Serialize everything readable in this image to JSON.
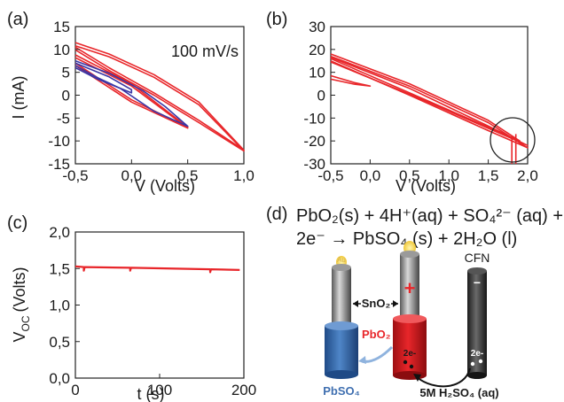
{
  "colors": {
    "red": "#e8262a",
    "blue": "#3a37a6",
    "black": "#111111",
    "gold": "#f3d35a",
    "pbso4_blue": "#3f6fb0",
    "arrow_blue": "#8fb3de"
  },
  "chart_data": [
    {
      "type": "line",
      "panel_label": "(a)",
      "annotation": "100 mV/s",
      "xlabel": "V (Volts)",
      "ylabel": "I (mA)",
      "xlim": [
        -0.5,
        1.0
      ],
      "ylim": [
        -15,
        15
      ],
      "xticks": [
        "-0,5",
        "0,0",
        "0,5",
        "1,0"
      ],
      "yticks": [
        "-15",
        "-10",
        "-5",
        "0",
        "5",
        "10",
        "15"
      ],
      "series": [
        {
          "color": "red",
          "x": [
            -0.5,
            -0.2,
            0.2,
            0.6,
            1.0,
            0.6,
            0.2,
            -0.2,
            -0.5
          ],
          "y": [
            11.5,
            9.0,
            4.5,
            -1.5,
            -12.0,
            -5.5,
            0.5,
            6.0,
            10.5
          ]
        },
        {
          "color": "red",
          "x": [
            -0.5,
            -0.2,
            0.2,
            0.6,
            1.0,
            0.6,
            0.2,
            -0.2,
            -0.5
          ],
          "y": [
            10.8,
            8.4,
            3.9,
            -2.1,
            -12.2,
            -6.0,
            0.0,
            5.4,
            9.9
          ]
        },
        {
          "color": "red",
          "x": [
            -0.5,
            0.0,
            0.5,
            0.0,
            -0.5
          ],
          "y": [
            8.8,
            2.5,
            -7.0,
            -1.0,
            7.0
          ]
        },
        {
          "color": "red",
          "x": [
            -0.5,
            0.0,
            0.5,
            0.0,
            -0.5
          ],
          "y": [
            8.2,
            2.0,
            -7.2,
            -1.5,
            6.5
          ]
        },
        {
          "color": "blue",
          "x": [
            -0.5,
            -0.2,
            0.1,
            0.3,
            0.5,
            0.2,
            -0.1,
            -0.3,
            -0.5
          ],
          "y": [
            7.5,
            4.8,
            1.0,
            -2.5,
            -6.8,
            -3.5,
            1.5,
            3.8,
            6.5
          ]
        },
        {
          "color": "blue",
          "x": [
            -0.5,
            -0.2,
            0.0,
            0.0,
            -0.3,
            -0.5
          ],
          "y": [
            7.0,
            4.0,
            1.2,
            0.5,
            3.5,
            6.0
          ]
        }
      ]
    },
    {
      "type": "line",
      "panel_label": "(b)",
      "xlabel": "V (Volts)",
      "xlim": [
        -0.5,
        2.0
      ],
      "ylim": [
        -30,
        30
      ],
      "xticks": [
        "-0,5",
        "0,0",
        "0,5",
        "1,0",
        "1,5",
        "2,0"
      ],
      "yticks": [
        "-30",
        "-20",
        "-10",
        "0",
        "10",
        "20",
        "30"
      ],
      "series": [
        {
          "color": "red",
          "x": [
            -0.5,
            0.5,
            1.5,
            1.9,
            1.5,
            0.5,
            -0.5
          ],
          "y": [
            18.0,
            5.0,
            -11.0,
            -20.0,
            -14.0,
            1.0,
            16.0
          ]
        },
        {
          "color": "red",
          "x": [
            -0.5,
            0.5,
            1.5,
            2.0,
            1.5,
            0.5,
            -0.5
          ],
          "y": [
            17.0,
            4.0,
            -12.0,
            -23.0,
            -15.5,
            0.0,
            15.0
          ]
        },
        {
          "color": "red",
          "x": [
            -0.5,
            0.5,
            1.5,
            2.0,
            1.6,
            0.6,
            -0.5
          ],
          "y": [
            16.5,
            3.0,
            -13.5,
            -22.0,
            -16.0,
            -1.0,
            14.5
          ]
        },
        {
          "color": "red",
          "x": [
            -0.5,
            -0.2,
            0.0,
            -0.2,
            -0.5
          ],
          "y": [
            8.5,
            5.5,
            4.0,
            4.8,
            7.0
          ]
        },
        {
          "color": "red",
          "x": [
            1.8,
            1.8
          ],
          "y": [
            -18.0,
            -30.0
          ]
        },
        {
          "color": "red",
          "x": [
            1.85,
            1.85
          ],
          "y": [
            -17.0,
            -30.0
          ]
        }
      ]
    },
    {
      "type": "line",
      "panel_label": "(c)",
      "xlabel": "t (s)",
      "ylabel": "V",
      "ylabel_sub": "OC",
      "ylabel_unit": "(Volts)",
      "xlim": [
        0,
        200
      ],
      "ylim": [
        0.0,
        2.0
      ],
      "xticks": [
        "0",
        "100",
        "200"
      ],
      "yticks": [
        "0,0",
        "0,5",
        "1,0",
        "1,5",
        "2,0"
      ],
      "series": [
        {
          "color": "red",
          "x": [
            0,
            10,
            10,
            11,
            65,
            65,
            66,
            160,
            160,
            161,
            195
          ],
          "y": [
            1.53,
            1.52,
            1.47,
            1.52,
            1.51,
            1.47,
            1.51,
            1.49,
            1.45,
            1.49,
            1.48
          ]
        }
      ]
    }
  ],
  "panel_d": {
    "label": "(d)",
    "eq_line1": "PbO₂(s)  + 4H⁺(aq) + SO₄²⁻ (aq)  +",
    "eq_line2": "2e⁻ → PbSO₄ (s) + 2H₂O (l)",
    "cfn": "CFN",
    "au": "Au",
    "sno2": "SnO₂",
    "pbo2": "PbO₂",
    "pbso4": "PbSO₄",
    "electrolyte": "5M H₂SO₄ (aq)",
    "plus": "+",
    "minus": "−",
    "two_e_1": "2e-",
    "two_e_2": "2e-"
  }
}
